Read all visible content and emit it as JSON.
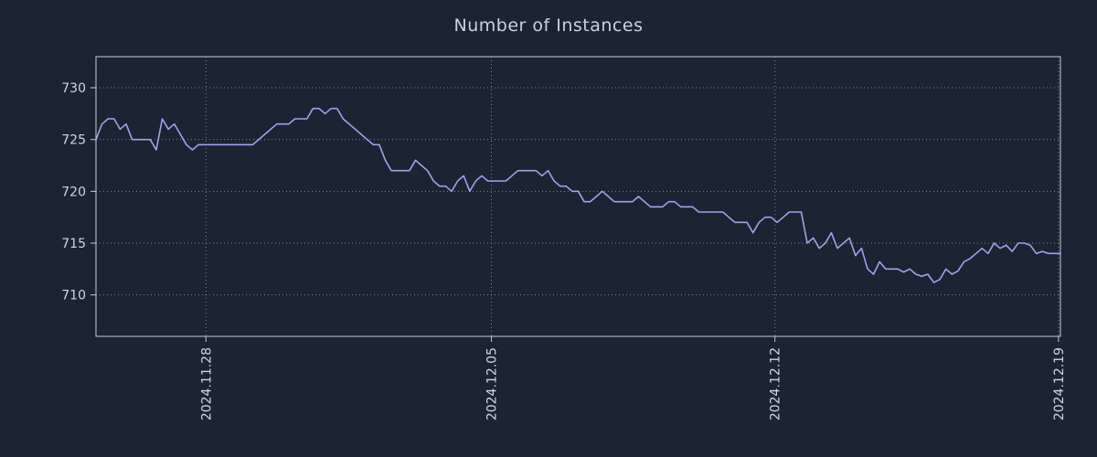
{
  "chart_data": {
    "type": "line",
    "title": "Number of Instances",
    "xlabel": "",
    "ylabel": "",
    "ylim": [
      706,
      733
    ],
    "yticks": [
      710,
      715,
      720,
      725,
      730
    ],
    "xticks": [
      {
        "label": "2024.11.28",
        "pos": 0.114
      },
      {
        "label": "2024.12.05",
        "pos": 0.41
      },
      {
        "label": "2024.12.12",
        "pos": 0.704
      },
      {
        "label": "2024.12.19",
        "pos": 0.998
      }
    ],
    "grid": "dotted",
    "legend": "none",
    "series": [
      {
        "name": "instances",
        "values": [
          725,
          726.5,
          727,
          727,
          726,
          726.5,
          725,
          725,
          725,
          725,
          724,
          727,
          726,
          726.5,
          725.5,
          724.5,
          724,
          724.5,
          724.5,
          724.5,
          724.5,
          724.5,
          724.5,
          724.5,
          724.5,
          724.5,
          724.5,
          725,
          725.5,
          726,
          726.5,
          726.5,
          726.5,
          727,
          727,
          727,
          728,
          728,
          727.5,
          728,
          728,
          727,
          726.5,
          726,
          725.5,
          725,
          724.5,
          724.5,
          723,
          722,
          722,
          722,
          722,
          723,
          722.5,
          722,
          721,
          720.5,
          720.5,
          720,
          721,
          721.5,
          720,
          721,
          721.5,
          721,
          721,
          721,
          721,
          721.5,
          722,
          722,
          722,
          722,
          721.5,
          722,
          721,
          720.5,
          720.5,
          720,
          720,
          719,
          719,
          719.5,
          720,
          719.5,
          719,
          719,
          719,
          719,
          719.5,
          719,
          718.5,
          718.5,
          718.5,
          719,
          719,
          718.5,
          718.5,
          718.5,
          718,
          718,
          718,
          718,
          718,
          717.5,
          717,
          717,
          717,
          716,
          717,
          717.5,
          717.5,
          717,
          717.5,
          718,
          718,
          718,
          715,
          715.5,
          714.5,
          715,
          716,
          714.5,
          715,
          715.5,
          713.8,
          714.5,
          712.5,
          712,
          713.2,
          712.5,
          712.5,
          712.5,
          712.2,
          712.5,
          712,
          711.8,
          712,
          711.2,
          711.5,
          712.5,
          712,
          712.3,
          713.2,
          713.5,
          714,
          714.5,
          714,
          715,
          714.5,
          714.8,
          714.2,
          715,
          715,
          714.8,
          714,
          714.2,
          714,
          714,
          714
        ]
      }
    ],
    "colors": {
      "background": "#1b2433",
      "line": "#a2a2e8",
      "grid": "#ffffff",
      "axis": "#c7ccd4",
      "text": "#d2d6de"
    }
  }
}
